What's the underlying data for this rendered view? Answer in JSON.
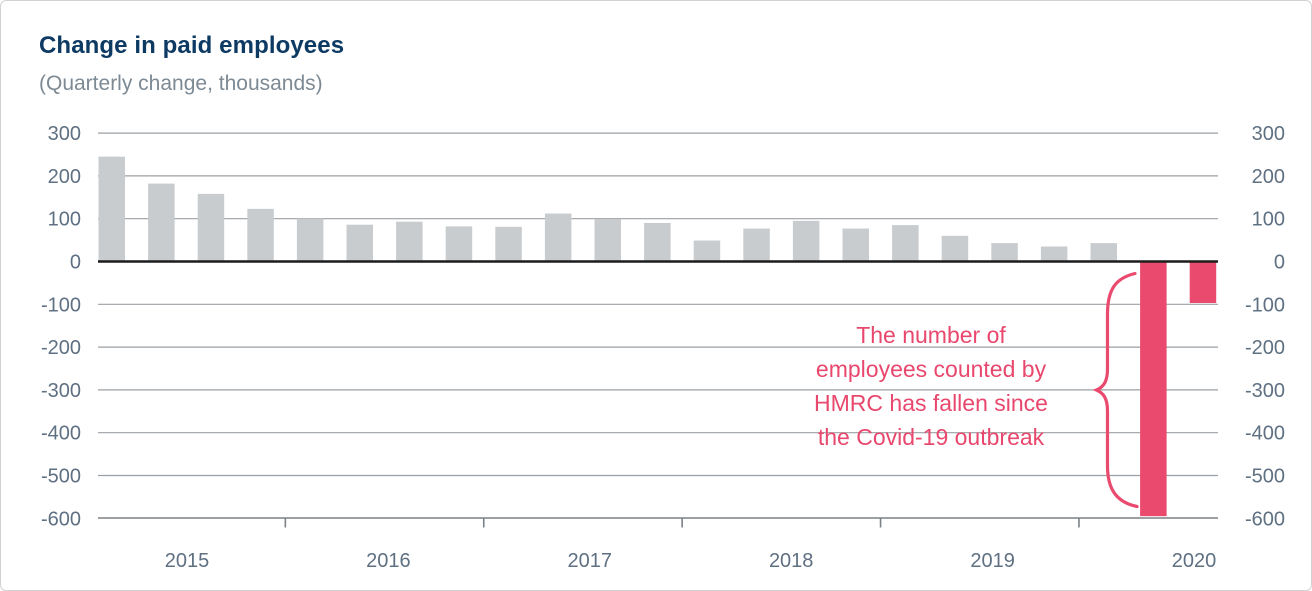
{
  "header": {
    "title": "Change in paid employees",
    "subtitle": "(Quarterly change, thousands)"
  },
  "annotation": {
    "lines": [
      "The number of",
      "employees counted by",
      "HMRC has fallen since",
      "the Covid-19 outbreak"
    ]
  },
  "chart_data": {
    "type": "bar",
    "title": "Change in paid employees",
    "subtitle": "(Quarterly change, thousands)",
    "ylabel": "Quarterly change, thousands",
    "ylim": [
      -600,
      300
    ],
    "yticks": [
      300,
      200,
      100,
      0,
      -100,
      -200,
      -300,
      -400,
      -500,
      -600
    ],
    "y_axis_labels": "both-sides",
    "grid": "horizontal",
    "legend": "none",
    "years": [
      {
        "label": "2015",
        "values": [
          245,
          182,
          158,
          123
        ]
      },
      {
        "label": "2016",
        "values": [
          100,
          86,
          93,
          82
        ]
      },
      {
        "label": "2017",
        "values": [
          81,
          112,
          99,
          90
        ]
      },
      {
        "label": "2018",
        "values": [
          49,
          77,
          95,
          77
        ]
      },
      {
        "label": "2019",
        "values": [
          85,
          60,
          43,
          35
        ]
      },
      {
        "label": "2020",
        "values": [
          43,
          -595,
          -97
        ]
      }
    ],
    "colors": {
      "positive_bar": "#c8cccf",
      "negative_bar": "#e94a6e"
    }
  },
  "style": {
    "title_color": "#0d3a63",
    "subtitle_color": "#7d8a94",
    "axis_label_color": "#5e7082",
    "annotation_color": "#e8486d",
    "gridline_color": "#9ba0a4",
    "zero_line_color": "#1c1c1c",
    "axis_line_color": "#7b8084"
  }
}
